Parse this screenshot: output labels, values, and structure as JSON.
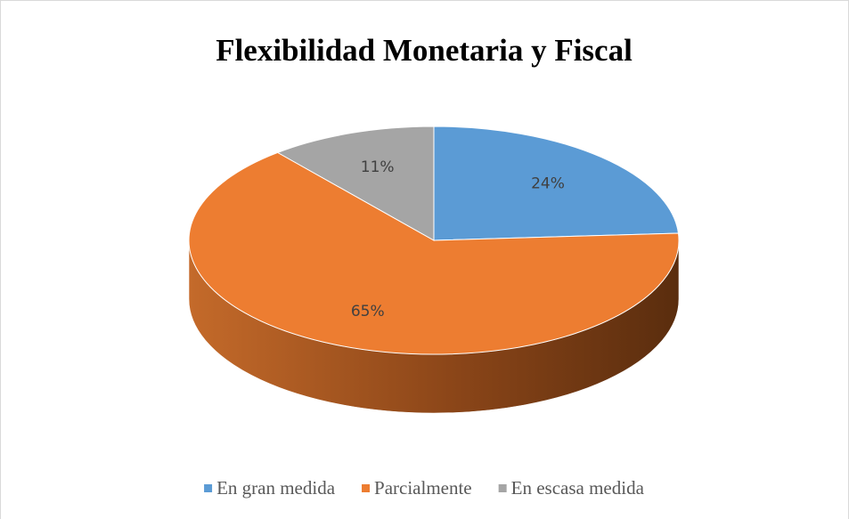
{
  "chart_data": {
    "type": "pie",
    "title": "Flexibilidad Monetaria y Fiscal",
    "categories": [
      "En gran medida",
      "Parcialmente",
      "En escasa medida"
    ],
    "values": [
      24,
      65,
      11
    ],
    "value_labels": [
      "24%",
      "65%",
      "11%"
    ],
    "colors": [
      "#5b9bd5",
      "#ed7d31",
      "#a5a5a5"
    ],
    "legend": "bottom"
  }
}
